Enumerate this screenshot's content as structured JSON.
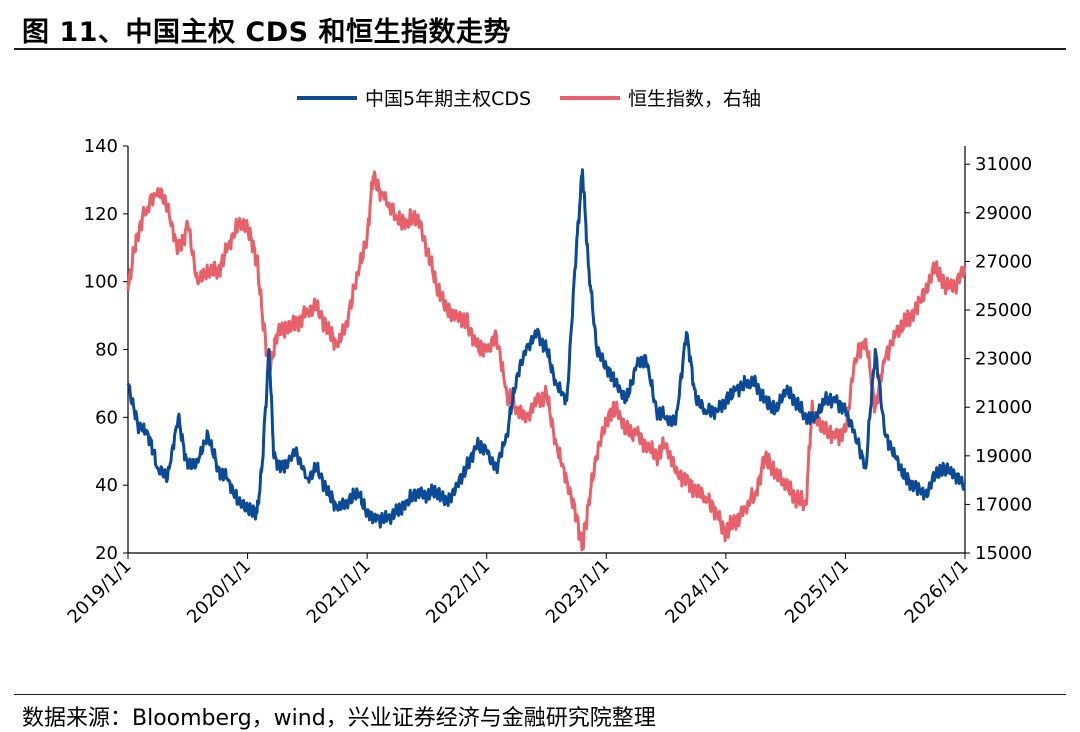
{
  "header": {
    "title": "图 11、中国主权 CDS 和恒生指数走势"
  },
  "footer": {
    "source": "数据来源：Bloomberg，wind，兴业证券经济与金融研究院整理"
  },
  "chart_data": {
    "type": "line",
    "title": "图 11、中国主权 CDS 和恒生指数走势",
    "x_ticks": [
      "2019/1/1",
      "2020/1/1",
      "2021/1/1",
      "2022/1/1",
      "2023/1/1",
      "2024/1/1",
      "2025/1/1",
      "2026/1/1"
    ],
    "x_range": [
      2019.0,
      2026.0
    ],
    "y_left": {
      "ticks": [
        20,
        40,
        60,
        80,
        100,
        120,
        140
      ],
      "range": [
        20,
        140
      ]
    },
    "y_right": {
      "ticks": [
        15000,
        17000,
        19000,
        21000,
        23000,
        25000,
        27000,
        29000,
        31000
      ],
      "range": [
        15000,
        31750
      ]
    },
    "legend_position": "top-center",
    "series": [
      {
        "name": "中国5年期主权CDS",
        "axis": "left",
        "color": "#0a4a96",
        "points": [
          [
            2019.0,
            70
          ],
          [
            2019.08,
            58
          ],
          [
            2019.17,
            55
          ],
          [
            2019.25,
            45
          ],
          [
            2019.33,
            42
          ],
          [
            2019.42,
            60
          ],
          [
            2019.5,
            45
          ],
          [
            2019.58,
            47
          ],
          [
            2019.67,
            55
          ],
          [
            2019.75,
            45
          ],
          [
            2019.83,
            42
          ],
          [
            2019.92,
            35
          ],
          [
            2020.0,
            33
          ],
          [
            2020.08,
            32
          ],
          [
            2020.12,
            45
          ],
          [
            2020.18,
            80
          ],
          [
            2020.22,
            48
          ],
          [
            2020.3,
            45
          ],
          [
            2020.4,
            50
          ],
          [
            2020.5,
            42
          ],
          [
            2020.58,
            45
          ],
          [
            2020.67,
            38
          ],
          [
            2020.75,
            33
          ],
          [
            2020.83,
            35
          ],
          [
            2020.92,
            38
          ],
          [
            2021.0,
            32
          ],
          [
            2021.08,
            30
          ],
          [
            2021.17,
            30
          ],
          [
            2021.25,
            32
          ],
          [
            2021.33,
            35
          ],
          [
            2021.42,
            38
          ],
          [
            2021.5,
            37
          ],
          [
            2021.58,
            38
          ],
          [
            2021.67,
            35
          ],
          [
            2021.75,
            40
          ],
          [
            2021.83,
            45
          ],
          [
            2021.92,
            52
          ],
          [
            2022.0,
            50
          ],
          [
            2022.08,
            45
          ],
          [
            2022.17,
            55
          ],
          [
            2022.25,
            72
          ],
          [
            2022.33,
            80
          ],
          [
            2022.42,
            85
          ],
          [
            2022.5,
            80
          ],
          [
            2022.58,
            70
          ],
          [
            2022.67,
            65
          ],
          [
            2022.75,
            110
          ],
          [
            2022.8,
            133
          ],
          [
            2022.85,
            105
          ],
          [
            2022.92,
            80
          ],
          [
            2023.0,
            75
          ],
          [
            2023.08,
            70
          ],
          [
            2023.17,
            65
          ],
          [
            2023.25,
            75
          ],
          [
            2023.33,
            78
          ],
          [
            2023.42,
            62
          ],
          [
            2023.5,
            60
          ],
          [
            2023.58,
            58
          ],
          [
            2023.67,
            85
          ],
          [
            2023.75,
            65
          ],
          [
            2023.83,
            62
          ],
          [
            2023.92,
            62
          ],
          [
            2024.0,
            65
          ],
          [
            2024.08,
            68
          ],
          [
            2024.17,
            70
          ],
          [
            2024.25,
            70
          ],
          [
            2024.33,
            65
          ],
          [
            2024.42,
            62
          ],
          [
            2024.5,
            68
          ],
          [
            2024.58,
            65
          ],
          [
            2024.67,
            60
          ],
          [
            2024.75,
            60
          ],
          [
            2024.83,
            65
          ],
          [
            2024.92,
            65
          ],
          [
            2025.0,
            62
          ],
          [
            2025.08,
            55
          ],
          [
            2025.17,
            45
          ],
          [
            2025.25,
            80
          ],
          [
            2025.33,
            55
          ],
          [
            2025.42,
            48
          ],
          [
            2025.5,
            42
          ],
          [
            2025.58,
            40
          ],
          [
            2025.67,
            37
          ],
          [
            2025.75,
            43
          ],
          [
            2025.83,
            45
          ],
          [
            2025.92,
            43
          ],
          [
            2026.0,
            40
          ]
        ]
      },
      {
        "name": "恒生指数，右轴",
        "axis": "right",
        "color": "#e8616a",
        "points": [
          [
            2019.0,
            25800
          ],
          [
            2019.05,
            27400
          ],
          [
            2019.12,
            28800
          ],
          [
            2019.25,
            30000
          ],
          [
            2019.33,
            29200
          ],
          [
            2019.42,
            27400
          ],
          [
            2019.5,
            28500
          ],
          [
            2019.58,
            26200
          ],
          [
            2019.67,
            26600
          ],
          [
            2019.75,
            26600
          ],
          [
            2019.83,
            27500
          ],
          [
            2019.92,
            28500
          ],
          [
            2020.0,
            28400
          ],
          [
            2020.08,
            27000
          ],
          [
            2020.12,
            25000
          ],
          [
            2020.18,
            22500
          ],
          [
            2020.25,
            24000
          ],
          [
            2020.33,
            24300
          ],
          [
            2020.42,
            24500
          ],
          [
            2020.5,
            25000
          ],
          [
            2020.58,
            25100
          ],
          [
            2020.67,
            24200
          ],
          [
            2020.75,
            23500
          ],
          [
            2020.83,
            24500
          ],
          [
            2020.92,
            26500
          ],
          [
            2021.0,
            28000
          ],
          [
            2021.05,
            30500
          ],
          [
            2021.12,
            29800
          ],
          [
            2021.25,
            28800
          ],
          [
            2021.33,
            28600
          ],
          [
            2021.42,
            28900
          ],
          [
            2021.5,
            27500
          ],
          [
            2021.58,
            26000
          ],
          [
            2021.67,
            25000
          ],
          [
            2021.75,
            24800
          ],
          [
            2021.83,
            24500
          ],
          [
            2021.92,
            23500
          ],
          [
            2022.0,
            23300
          ],
          [
            2022.08,
            24000
          ],
          [
            2022.17,
            21500
          ],
          [
            2022.25,
            21000
          ],
          [
            2022.33,
            20500
          ],
          [
            2022.42,
            21300
          ],
          [
            2022.5,
            21500
          ],
          [
            2022.58,
            19500
          ],
          [
            2022.67,
            18000
          ],
          [
            2022.75,
            16500
          ],
          [
            2022.8,
            15200
          ],
          [
            2022.85,
            17000
          ],
          [
            2022.92,
            19000
          ],
          [
            2023.0,
            20500
          ],
          [
            2023.08,
            21000
          ],
          [
            2023.17,
            20000
          ],
          [
            2023.25,
            19900
          ],
          [
            2023.33,
            19500
          ],
          [
            2023.42,
            19000
          ],
          [
            2023.5,
            19500
          ],
          [
            2023.58,
            18300
          ],
          [
            2023.67,
            18000
          ],
          [
            2023.75,
            17500
          ],
          [
            2023.83,
            17300
          ],
          [
            2023.92,
            16700
          ],
          [
            2024.0,
            15800
          ],
          [
            2024.05,
            16200
          ],
          [
            2024.12,
            16500
          ],
          [
            2024.25,
            17500
          ],
          [
            2024.33,
            19000
          ],
          [
            2024.42,
            18200
          ],
          [
            2024.5,
            17800
          ],
          [
            2024.58,
            17300
          ],
          [
            2024.67,
            17000
          ],
          [
            2024.72,
            21000
          ],
          [
            2024.75,
            20500
          ],
          [
            2024.83,
            20000
          ],
          [
            2024.92,
            19800
          ],
          [
            2025.0,
            20000
          ],
          [
            2025.08,
            23000
          ],
          [
            2025.17,
            23800
          ],
          [
            2025.25,
            21000
          ],
          [
            2025.33,
            23000
          ],
          [
            2025.42,
            24000
          ],
          [
            2025.5,
            24500
          ],
          [
            2025.58,
            25000
          ],
          [
            2025.67,
            25800
          ],
          [
            2025.75,
            26800
          ],
          [
            2025.83,
            26000
          ],
          [
            2025.92,
            26000
          ],
          [
            2026.0,
            26800
          ]
        ]
      }
    ]
  }
}
